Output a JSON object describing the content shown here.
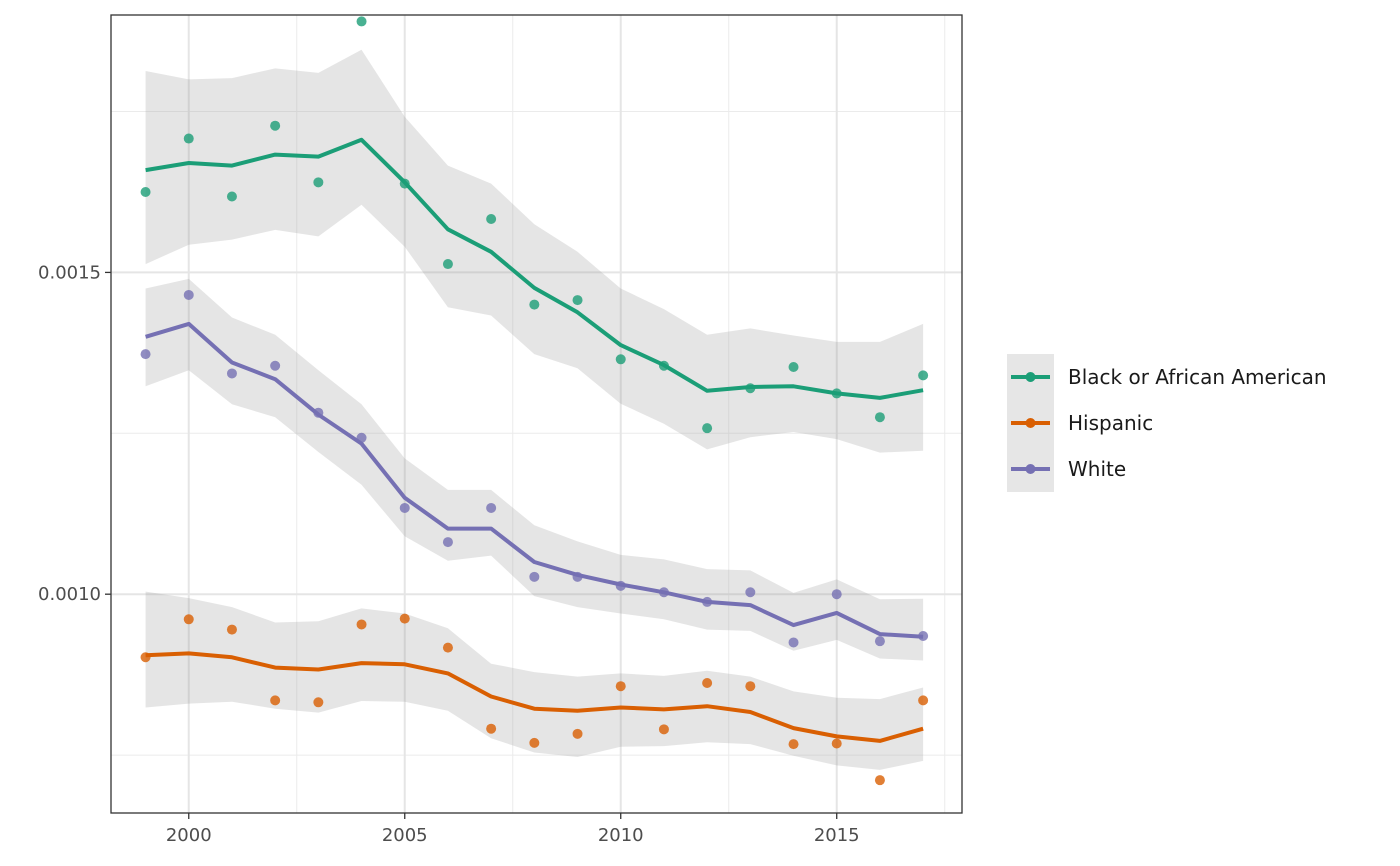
{
  "chart_data": {
    "type": "line",
    "title": "",
    "xlabel": "",
    "ylabel": "",
    "xlim": [
      1998.2,
      2017.9
    ],
    "ylim": [
      0.00066,
      0.0019
    ],
    "x_ticks": [
      2000,
      2005,
      2010,
      2015
    ],
    "x_tick_labels": [
      "2000",
      "2005",
      "2010",
      "2015"
    ],
    "y_ticks": [
      0.001,
      0.0015
    ],
    "y_tick_labels": [
      "0.0010",
      "0.0015"
    ],
    "grid": true,
    "legend_position": "right",
    "x": [
      1999,
      2000,
      2001,
      2002,
      2003,
      2004,
      2005,
      2006,
      2007,
      2008,
      2009,
      2010,
      2011,
      2012,
      2013,
      2014,
      2015,
      2016,
      2017
    ],
    "series": [
      {
        "name": "Black or African American",
        "color": "#1b9e77",
        "points": [
          0.001625,
          0.001708,
          0.001618,
          0.001728,
          0.00164,
          0.00189,
          0.001638,
          0.001513,
          0.001583,
          0.00145,
          0.001457,
          0.001365,
          0.001355,
          0.001258,
          0.00132,
          0.001353,
          0.001312,
          0.001275,
          0.00134
        ],
        "fit": [
          0.001659,
          0.00167,
          0.001666,
          0.001683,
          0.00168,
          0.001706,
          0.00164,
          0.001567,
          0.001532,
          0.001476,
          0.001438,
          0.001387,
          0.001356,
          0.001316,
          0.001322,
          0.001323,
          0.001312,
          0.001305,
          0.001317
        ],
        "ci_lower": [
          0.001513,
          0.001543,
          0.001551,
          0.001566,
          0.001556,
          0.001605,
          0.00154,
          0.001446,
          0.001433,
          0.001373,
          0.001351,
          0.001296,
          0.001265,
          0.001225,
          0.001244,
          0.001252,
          0.001241,
          0.00122,
          0.001223
        ],
        "ci_upper": [
          0.001813,
          0.0018,
          0.001802,
          0.001817,
          0.00181,
          0.001846,
          0.001742,
          0.001666,
          0.001638,
          0.001575,
          0.001532,
          0.001475,
          0.001443,
          0.001403,
          0.001413,
          0.001402,
          0.001392,
          0.001392,
          0.00142
        ]
      },
      {
        "name": "Hispanic",
        "color": "#d95f02",
        "points": [
          0.000902,
          0.000961,
          0.000945,
          0.000835,
          0.000832,
          0.000953,
          0.000962,
          0.000917,
          0.000791,
          0.000769,
          0.000783,
          0.000857,
          0.00079,
          0.000862,
          0.000857,
          0.000767,
          0.000768,
          0.000711,
          0.000835
        ],
        "fit": [
          0.000905,
          0.000908,
          0.000902,
          0.000886,
          0.000883,
          0.000893,
          0.000891,
          0.000877,
          0.000841,
          0.000822,
          0.000819,
          0.000824,
          0.000821,
          0.000826,
          0.000817,
          0.000792,
          0.000779,
          0.000772,
          0.000791
        ],
        "ci_lower": [
          0.000824,
          0.00083,
          0.000833,
          0.000822,
          0.000816,
          0.000834,
          0.000833,
          0.000819,
          0.000776,
          0.000754,
          0.000747,
          0.000763,
          0.000764,
          0.00077,
          0.000767,
          0.000749,
          0.000734,
          0.000727,
          0.000741
        ],
        "ci_upper": [
          0.001004,
          0.000994,
          0.00098,
          0.000956,
          0.000958,
          0.000978,
          0.00097,
          0.000947,
          0.000892,
          0.000879,
          0.000872,
          0.000877,
          0.000873,
          0.000881,
          0.000872,
          0.000849,
          0.000839,
          0.000837,
          0.000855
        ]
      },
      {
        "name": "White",
        "color": "#7570b3",
        "points": [
          0.001373,
          0.001465,
          0.001343,
          0.001355,
          0.001282,
          0.001243,
          0.001134,
          0.001081,
          0.001134,
          0.001027,
          0.001027,
          0.001013,
          0.001003,
          0.000988,
          0.001003,
          0.000925,
          0.001,
          0.000927,
          0.000935
        ],
        "fit": [
          0.0014,
          0.00142,
          0.00136,
          0.001334,
          0.001279,
          0.001234,
          0.00115,
          0.001102,
          0.001102,
          0.00105,
          0.00103,
          0.001015,
          0.001003,
          0.000988,
          0.000983,
          0.000952,
          0.000971,
          0.000938,
          0.000934
        ],
        "ci_lower": [
          0.001323,
          0.001348,
          0.001295,
          0.001275,
          0.001221,
          0.00117,
          0.00109,
          0.001052,
          0.00106,
          0.000997,
          0.00098,
          0.00097,
          0.000961,
          0.000945,
          0.000943,
          0.000912,
          0.000929,
          0.0009,
          0.000897
        ],
        "ci_upper": [
          0.001475,
          0.00149,
          0.00143,
          0.001403,
          0.001348,
          0.001295,
          0.001211,
          0.001162,
          0.001162,
          0.001107,
          0.001082,
          0.001061,
          0.001054,
          0.001039,
          0.001037,
          0.001002,
          0.001023,
          0.000992,
          0.000993
        ]
      }
    ]
  }
}
